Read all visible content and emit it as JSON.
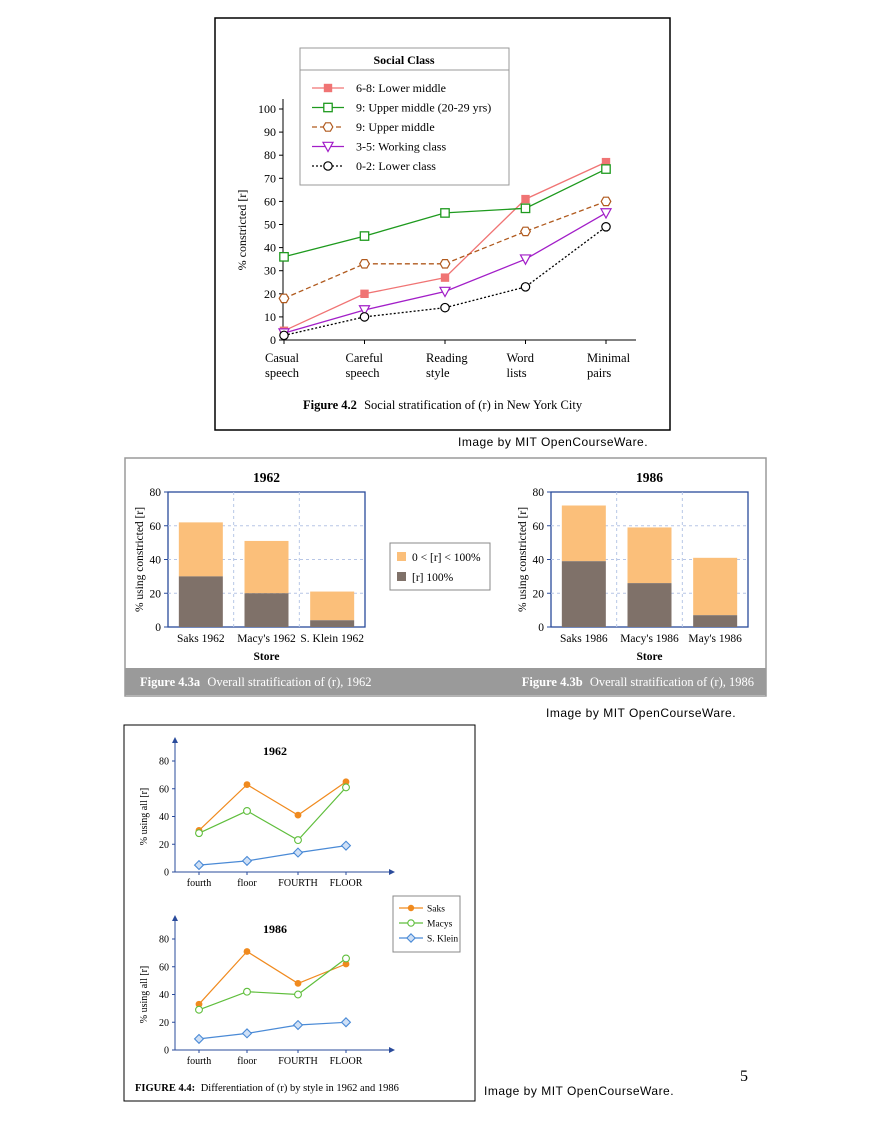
{
  "credits": [
    "Image by MIT OpenCourseWare.",
    "Image by MIT OpenCourseWare.",
    "Image by MIT OpenCourseWare."
  ],
  "page_number": "5",
  "colors": {
    "lower_middle": "#f07474",
    "upper_middle_young": "#1e9a1e",
    "upper_middle": "#b05a1e",
    "working": "#a21ec8",
    "lower": "#000000",
    "stack_partial": "#fbbf7a",
    "stack_full": "#7f7169",
    "saks": "#f08a1e",
    "macys": "#5fbe3c",
    "sklein": "#4a8ad6",
    "band": "#9a9a9a",
    "axis": "#2a4b9b"
  },
  "chart_data": [
    {
      "type": "line",
      "title": "",
      "caption_label": "Figure 4.2",
      "caption_text": "Social stratification of (r) in New York City",
      "legend_title": "Social Class",
      "xlabel": "",
      "ylabel": "% constricted [r]",
      "categories": [
        [
          "Casual",
          "speech"
        ],
        [
          "Careful",
          "speech"
        ],
        [
          "Reading",
          "style"
        ],
        [
          "Word",
          "lists"
        ],
        [
          "Minimal",
          "pairs"
        ]
      ],
      "ylim": [
        0,
        100
      ],
      "yticks": [
        "0",
        "10",
        "20",
        "30",
        "40",
        "50",
        "60",
        "70",
        "80",
        "90",
        "100"
      ],
      "series": [
        {
          "name": "6-8: Lower middle",
          "values": [
            4,
            20,
            27,
            61,
            77
          ],
          "marker": "filled-square",
          "dash": false
        },
        {
          "name": "9: Upper middle (20-29 yrs)",
          "values": [
            36,
            45,
            55,
            57,
            74
          ],
          "marker": "open-square",
          "dash": false
        },
        {
          "name": "9: Upper middle",
          "values": [
            18,
            33,
            33,
            47,
            60
          ],
          "marker": "hexagon",
          "dash": true
        },
        {
          "name": "3-5: Working class",
          "values": [
            3,
            13,
            21,
            35,
            55
          ],
          "marker": "triangle",
          "dash": false
        },
        {
          "name": "0-2: Lower class",
          "values": [
            2,
            10,
            14,
            23,
            49
          ],
          "marker": "circle",
          "dash": "dot"
        }
      ]
    },
    {
      "type": "bar",
      "title": "1962",
      "caption_label": "Figure 4.3a",
      "caption_text": "Overall stratification of (r), 1962",
      "xlabel": "Store",
      "ylabel": "% using constricted [r]",
      "ylim": [
        0,
        80
      ],
      "yticks": [
        "0",
        "20",
        "40",
        "60",
        "80"
      ],
      "categories": [
        "Saks 1962",
        "Macy's 1962",
        "S. Klein 1962"
      ],
      "stacked": true,
      "series": [
        {
          "name": "[r] 100%",
          "values": [
            30,
            20,
            4
          ]
        },
        {
          "name": "0 < [r] < 100%",
          "values": [
            32,
            31,
            17
          ]
        }
      ]
    },
    {
      "type": "bar",
      "title": "1986",
      "caption_label": "Figure 4.3b",
      "caption_text": "Overall stratification of (r), 1986",
      "xlabel": "Store",
      "ylabel": "% using constricted [r]",
      "ylim": [
        0,
        80
      ],
      "yticks": [
        "0",
        "20",
        "40",
        "60",
        "80"
      ],
      "categories": [
        "Saks 1986",
        "Macy's 1986",
        "May's 1986"
      ],
      "stacked": true,
      "series": [
        {
          "name": "[r] 100%",
          "values": [
            39,
            26,
            7
          ]
        },
        {
          "name": "0 < [r] < 100%",
          "values": [
            33,
            33,
            34
          ]
        }
      ],
      "legend": [
        "0 < [r] < 100%",
        "[r] 100%"
      ]
    },
    {
      "type": "line",
      "title": "1962",
      "xlabel": "",
      "ylabel": "% using all [r]",
      "ylim": [
        0,
        80
      ],
      "yticks": [
        "0",
        "20",
        "40",
        "60",
        "80"
      ],
      "categories": [
        "fourth",
        "floor",
        "FOURTH",
        "FLOOR"
      ],
      "series": [
        {
          "name": "Saks",
          "values": [
            30,
            63,
            41,
            65
          ]
        },
        {
          "name": "Macys",
          "values": [
            28,
            44,
            23,
            61
          ]
        },
        {
          "name": "S. Klein",
          "values": [
            5,
            8,
            14,
            19
          ]
        }
      ]
    },
    {
      "type": "line",
      "title": "1986",
      "xlabel": "",
      "ylabel": "% using all [r]",
      "ylim": [
        0,
        80
      ],
      "yticks": [
        "0",
        "20",
        "40",
        "60",
        "80"
      ],
      "categories": [
        "fourth",
        "floor",
        "FOURTH",
        "FLOOR"
      ],
      "series": [
        {
          "name": "Saks",
          "values": [
            33,
            71,
            48,
            62
          ]
        },
        {
          "name": "Macys",
          "values": [
            29,
            42,
            40,
            66
          ]
        },
        {
          "name": "S. Klein",
          "values": [
            8,
            12,
            18,
            20
          ]
        }
      ],
      "legend": [
        "Saks",
        "Macys",
        "S. Klein"
      ],
      "caption_label": "FIGURE 4.4:",
      "caption_text": "Differentiation of (r) by style in 1962 and 1986"
    }
  ]
}
